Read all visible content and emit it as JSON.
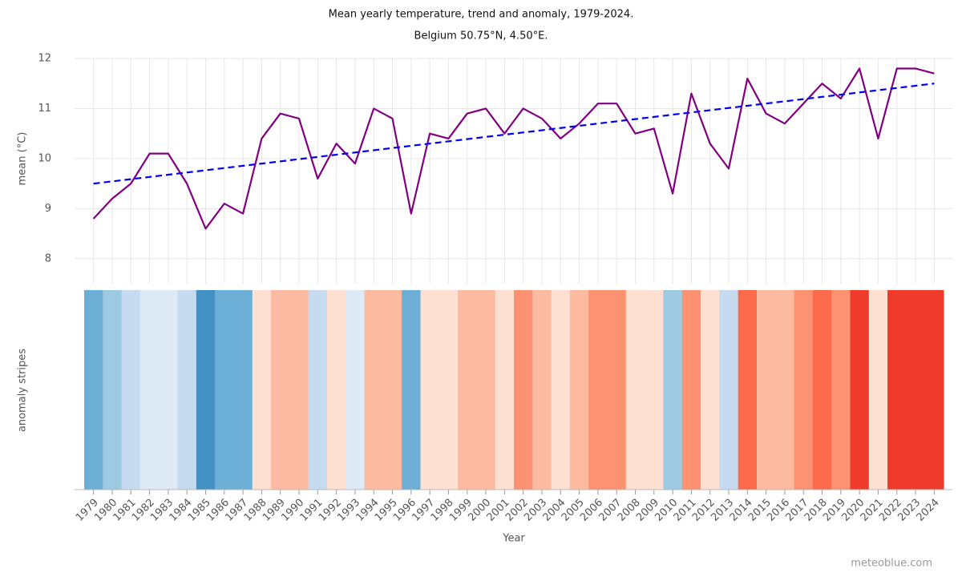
{
  "chart_data": {
    "type": "line",
    "title": "Mean yearly temperature, trend and anomaly, 1979-2024.",
    "subtitle": "Belgium 50.75°N, 4.50°E.",
    "y_label": "mean (°C)",
    "stripes_label": "anomaly stripes",
    "x_label": "Year",
    "credit": "meteoblue.com",
    "categories": [
      "1979",
      "1980",
      "1981",
      "1982",
      "1983",
      "1984",
      "1985",
      "1986",
      "1987",
      "1988",
      "1989",
      "1990",
      "1991",
      "1992",
      "1993",
      "1994",
      "1995",
      "1996",
      "1997",
      "1998",
      "1999",
      "2000",
      "2001",
      "2002",
      "2003",
      "2004",
      "2005",
      "2006",
      "2007",
      "2008",
      "2009",
      "2010",
      "2011",
      "2012",
      "2013",
      "2014",
      "2015",
      "2016",
      "2017",
      "2018",
      "2019",
      "2020",
      "2021",
      "2022",
      "2023",
      "2024"
    ],
    "series": [
      {
        "color": "#800080",
        "values": [
          8.8,
          9.2,
          9.5,
          10.1,
          10.1,
          9.5,
          8.6,
          9.1,
          8.9,
          10.4,
          10.9,
          10.8,
          9.6,
          10.3,
          9.9,
          11.0,
          10.8,
          8.9,
          10.5,
          10.4,
          10.9,
          11.0,
          10.5,
          11.0,
          10.8,
          10.4,
          10.7,
          11.1,
          11.1,
          10.5,
          10.6,
          9.3,
          11.3,
          10.3,
          9.8,
          11.6,
          10.9,
          10.7,
          11.1,
          11.5,
          11.2,
          11.8,
          10.4,
          11.8,
          11.8,
          11.7
        ]
      }
    ],
    "trend": {
      "color": "#0000ee",
      "values": [
        9.5,
        11.5
      ]
    },
    "stripe_colors": [
      "#6baed6",
      "#9ecae1",
      "#c6dbef",
      "#deebf7",
      "#deebf7",
      "#c6dbef",
      "#4292c6",
      "#6baed6",
      "#6baed6",
      "#fee0d2",
      "#fcbba1",
      "#fcbba1",
      "#c6dbef",
      "#fee0d2",
      "#deebf7",
      "#fcbba1",
      "#fcbba1",
      "#6baed6",
      "#fee0d2",
      "#fee0d2",
      "#fcbba1",
      "#fcbba1",
      "#fee0d2",
      "#fc9272",
      "#fcbba1",
      "#fee0d2",
      "#fcbba1",
      "#fc9272",
      "#fc9272",
      "#fee0d2",
      "#fee0d2",
      "#9ecae1",
      "#fc9272",
      "#fee0d2",
      "#c6dbef",
      "#fb6a4a",
      "#fcbba1",
      "#fcbba1",
      "#fc9272",
      "#fb6a4a",
      "#fc9272",
      "#ef3b2c",
      "#fee0d2",
      "#ef3b2c",
      "#ef3b2c",
      "#ef3b2c"
    ],
    "ylim": [
      7.5,
      12
    ],
    "yticks": [
      8,
      9,
      10,
      11,
      12
    ],
    "grid": true
  }
}
